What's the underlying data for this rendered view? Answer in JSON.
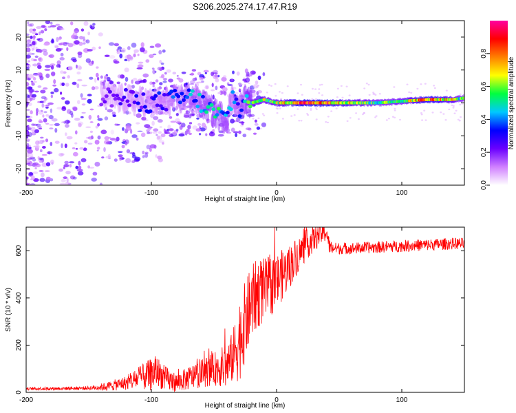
{
  "title": "S206.2025.274.17.47.R19",
  "chart_data": [
    {
      "type": "heatmap",
      "xlabel": "Height of straight line (km)",
      "ylabel": "Frequency (Hz)",
      "xlim": [
        -200,
        150
      ],
      "ylim": [
        -25,
        25
      ],
      "xticks": [
        -200,
        -100,
        0,
        100
      ],
      "yticks": [
        -20,
        -10,
        0,
        10,
        20
      ],
      "colorbar": {
        "label": "Normalized spectral amplitude",
        "range": [
          0,
          1
        ],
        "ticks": [
          0.0,
          0.2,
          0.4,
          0.6,
          0.8
        ],
        "colors": [
          "#ffffff",
          "#d080ff",
          "#6a00ff",
          "#0000ff",
          "#00c8ff",
          "#00ff40",
          "#ffff00",
          "#ff8000",
          "#ff0000",
          "#ff00a0"
        ]
      },
      "ridge": {
        "x": [
          -140,
          -120,
          -100,
          -80,
          -70,
          -60,
          -50,
          -40,
          -35,
          -30,
          -25,
          -20,
          -10,
          0,
          10,
          20,
          40,
          60,
          80,
          100,
          120,
          140,
          150
        ],
        "freq": [
          2,
          1,
          0,
          1,
          2,
          0,
          -3,
          -5,
          2,
          -2,
          1,
          0,
          1,
          0,
          0,
          0,
          0,
          0,
          0,
          0.5,
          1,
          1,
          1.5
        ],
        "amplitude": [
          0.2,
          0.25,
          0.3,
          0.35,
          0.4,
          0.45,
          0.5,
          0.45,
          0.35,
          0.4,
          0.5,
          0.55,
          0.6,
          0.65,
          0.75,
          0.9,
          0.85,
          0.7,
          0.55,
          0.6,
          0.85,
          0.7,
          0.5
        ]
      }
    },
    {
      "type": "line",
      "xlabel": "Height of straight line (km)",
      "ylabel": "SNR (10 * v/v)",
      "xlim": [
        -200,
        150
      ],
      "ylim": [
        0,
        700
      ],
      "xticks": [
        -200,
        -100,
        0,
        100
      ],
      "yticks": [
        0,
        200,
        400,
        600
      ],
      "color": "#ff0000",
      "trend_x": [
        -200,
        -150,
        -135,
        -120,
        -110,
        -100,
        -95,
        -90,
        -80,
        -70,
        -60,
        -50,
        -40,
        -35,
        -30,
        -25,
        -20,
        -15,
        -10,
        -5,
        0,
        5,
        10,
        15,
        20,
        25,
        30,
        35,
        40,
        42,
        45,
        60,
        80,
        100,
        120,
        140,
        150
      ],
      "trend_y": [
        15,
        18,
        25,
        40,
        60,
        75,
        90,
        60,
        40,
        60,
        80,
        100,
        110,
        150,
        220,
        300,
        380,
        420,
        430,
        450,
        470,
        500,
        530,
        570,
        600,
        630,
        650,
        670,
        680,
        620,
        610,
        610,
        615,
        620,
        625,
        630,
        630
      ],
      "noise_amp_x": [
        -200,
        -150,
        -120,
        -100,
        -80,
        -50,
        -35,
        -30,
        -20,
        0,
        20,
        40,
        45,
        150
      ],
      "noise_amp_y": [
        6,
        8,
        30,
        70,
        40,
        70,
        110,
        180,
        160,
        120,
        70,
        40,
        25,
        25
      ]
    }
  ]
}
